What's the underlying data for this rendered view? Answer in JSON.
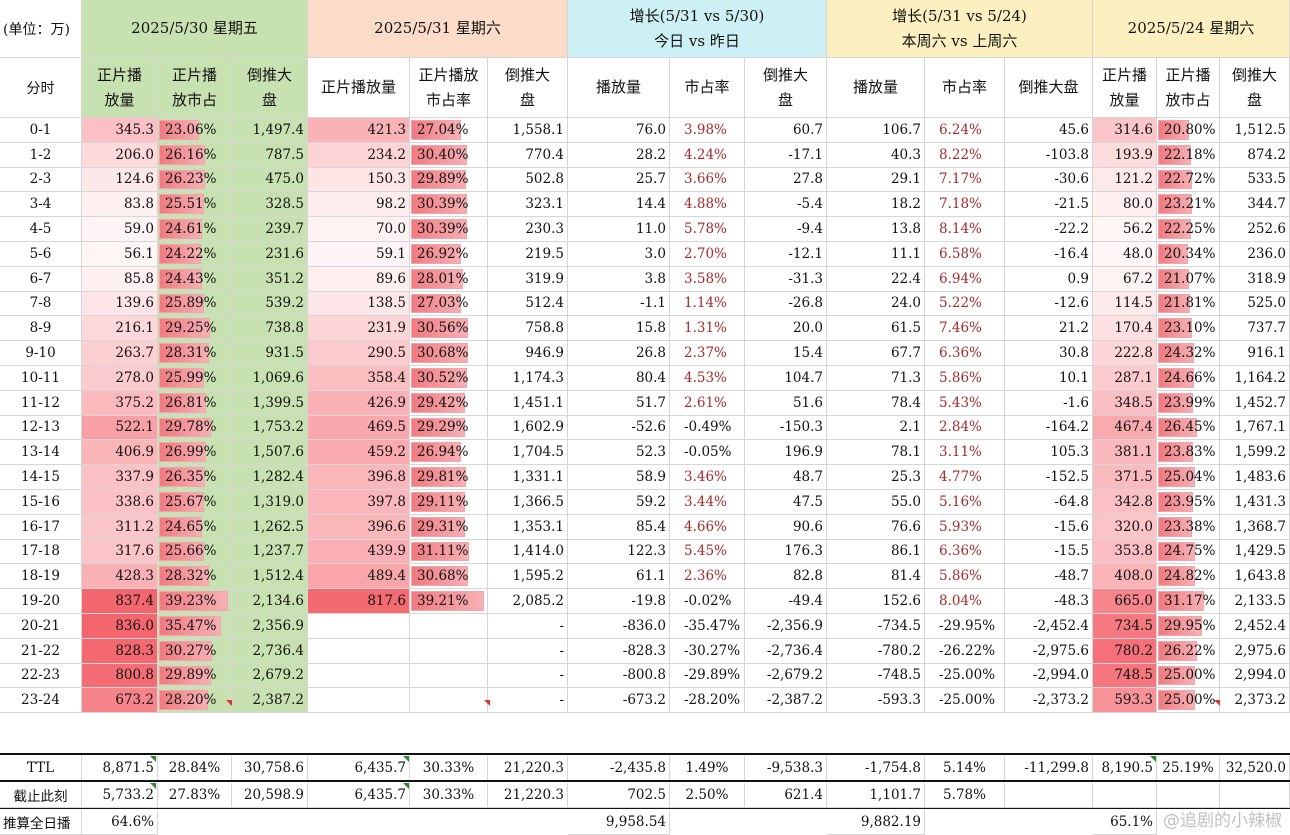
{
  "unit_label": "(单位：万)",
  "section_headers": {
    "d530": "2025/5/30 星期五",
    "d531": "2025/5/31 星期六",
    "g1": [
      "增长(5/31 vs 5/30)",
      "今日 vs 昨日"
    ],
    "g2": [
      "增长(5/31 vs 5/24)",
      "本周六 vs 上周六"
    ],
    "d524": "2025/5/24 星期六"
  },
  "column_headers": {
    "hour": "分时",
    "d530": [
      "正片播\n放量",
      "正片播\n放市占",
      "倒推大\n盘"
    ],
    "d531": [
      "正片播放量",
      "正片播放\n市占率",
      "倒推大\n盘"
    ],
    "g1": [
      "播放量",
      "市占率",
      "倒推大\n盘"
    ],
    "g2": [
      "播放量",
      "市占率",
      "倒推大盘"
    ],
    "d524": [
      "正片播\n放量",
      "正片播\n放市占",
      "倒推大\n盘"
    ]
  },
  "colors": {
    "d530_bg": "#c7e1b0",
    "d531_bg": "#fbdcc8",
    "g1_bg": "#ccf0f3",
    "g2_bg": "#fdf0c0",
    "d524_bg": "#fdf0c0",
    "heat_low": "#ffffff",
    "heat_high": "#f4666e",
    "bar": "#f07a80",
    "pct_text": "#a42b2b"
  },
  "rows": [
    {
      "hour": "0-1",
      "d530": [
        "345.3",
        "23.06%",
        "1,497.4"
      ],
      "d531": [
        "421.3",
        "27.04%",
        "1,558.1"
      ],
      "g1": [
        "76.0",
        "3.98%",
        "60.7"
      ],
      "g2": [
        "106.7",
        "6.24%",
        "45.6"
      ],
      "d524": [
        "314.6",
        "20.80%",
        "1,512.5"
      ]
    },
    {
      "hour": "1-2",
      "d530": [
        "206.0",
        "26.16%",
        "787.5"
      ],
      "d531": [
        "234.2",
        "30.40%",
        "770.4"
      ],
      "g1": [
        "28.2",
        "4.24%",
        "-17.1"
      ],
      "g2": [
        "40.3",
        "8.22%",
        "-103.8"
      ],
      "d524": [
        "193.9",
        "22.18%",
        "874.2"
      ]
    },
    {
      "hour": "2-3",
      "d530": [
        "124.6",
        "26.23%",
        "475.0"
      ],
      "d531": [
        "150.3",
        "29.89%",
        "502.8"
      ],
      "g1": [
        "25.7",
        "3.66%",
        "27.8"
      ],
      "g2": [
        "29.1",
        "7.17%",
        "-30.6"
      ],
      "d524": [
        "121.2",
        "22.72%",
        "533.5"
      ]
    },
    {
      "hour": "3-4",
      "d530": [
        "83.8",
        "25.51%",
        "328.5"
      ],
      "d531": [
        "98.2",
        "30.39%",
        "323.1"
      ],
      "g1": [
        "14.4",
        "4.88%",
        "-5.4"
      ],
      "g2": [
        "18.2",
        "7.18%",
        "-21.5"
      ],
      "d524": [
        "80.0",
        "23.21%",
        "344.7"
      ]
    },
    {
      "hour": "4-5",
      "d530": [
        "59.0",
        "24.61%",
        "239.7"
      ],
      "d531": [
        "70.0",
        "30.39%",
        "230.3"
      ],
      "g1": [
        "11.0",
        "5.78%",
        "-9.4"
      ],
      "g2": [
        "13.8",
        "8.14%",
        "-22.2"
      ],
      "d524": [
        "56.2",
        "22.25%",
        "252.6"
      ]
    },
    {
      "hour": "5-6",
      "d530": [
        "56.1",
        "24.22%",
        "231.6"
      ],
      "d531": [
        "59.1",
        "26.92%",
        "219.5"
      ],
      "g1": [
        "3.0",
        "2.70%",
        "-12.1"
      ],
      "g2": [
        "11.1",
        "6.58%",
        "-16.4"
      ],
      "d524": [
        "48.0",
        "20.34%",
        "236.0"
      ]
    },
    {
      "hour": "6-7",
      "d530": [
        "85.8",
        "24.43%",
        "351.2"
      ],
      "d531": [
        "89.6",
        "28.01%",
        "319.9"
      ],
      "g1": [
        "3.8",
        "3.58%",
        "-31.3"
      ],
      "g2": [
        "22.4",
        "6.94%",
        "0.9"
      ],
      "d524": [
        "67.2",
        "21.07%",
        "318.9"
      ]
    },
    {
      "hour": "7-8",
      "d530": [
        "139.6",
        "25.89%",
        "539.2"
      ],
      "d531": [
        "138.5",
        "27.03%",
        "512.4"
      ],
      "g1": [
        "-1.1",
        "1.14%",
        "-26.8"
      ],
      "g2": [
        "24.0",
        "5.22%",
        "-12.6"
      ],
      "d524": [
        "114.5",
        "21.81%",
        "525.0"
      ]
    },
    {
      "hour": "8-9",
      "d530": [
        "216.1",
        "29.25%",
        "738.8"
      ],
      "d531": [
        "231.9",
        "30.56%",
        "758.8"
      ],
      "g1": [
        "15.8",
        "1.31%",
        "20.0"
      ],
      "g2": [
        "61.5",
        "7.46%",
        "21.2"
      ],
      "d524": [
        "170.4",
        "23.10%",
        "737.7"
      ]
    },
    {
      "hour": "9-10",
      "d530": [
        "263.7",
        "28.31%",
        "931.5"
      ],
      "d531": [
        "290.5",
        "30.68%",
        "946.9"
      ],
      "g1": [
        "26.8",
        "2.37%",
        "15.4"
      ],
      "g2": [
        "67.7",
        "6.36%",
        "30.8"
      ],
      "d524": [
        "222.8",
        "24.32%",
        "916.1"
      ]
    },
    {
      "hour": "10-11",
      "d530": [
        "278.0",
        "25.99%",
        "1,069.6"
      ],
      "d531": [
        "358.4",
        "30.52%",
        "1,174.3"
      ],
      "g1": [
        "80.4",
        "4.53%",
        "104.7"
      ],
      "g2": [
        "71.3",
        "5.86%",
        "10.1"
      ],
      "d524": [
        "287.1",
        "24.66%",
        "1,164.2"
      ]
    },
    {
      "hour": "11-12",
      "d530": [
        "375.2",
        "26.81%",
        "1,399.5"
      ],
      "d531": [
        "426.9",
        "29.42%",
        "1,451.1"
      ],
      "g1": [
        "51.7",
        "2.61%",
        "51.6"
      ],
      "g2": [
        "78.4",
        "5.43%",
        "-1.6"
      ],
      "d524": [
        "348.5",
        "23.99%",
        "1,452.7"
      ]
    },
    {
      "hour": "12-13",
      "d530": [
        "522.1",
        "29.78%",
        "1,753.2"
      ],
      "d531": [
        "469.5",
        "29.29%",
        "1,602.9"
      ],
      "g1": [
        "-52.6",
        "-0.49%",
        "-150.3"
      ],
      "g2": [
        "2.1",
        "2.84%",
        "-164.2"
      ],
      "d524": [
        "467.4",
        "26.45%",
        "1,767.1"
      ]
    },
    {
      "hour": "13-14",
      "d530": [
        "406.9",
        "26.99%",
        "1,507.6"
      ],
      "d531": [
        "459.2",
        "26.94%",
        "1,704.5"
      ],
      "g1": [
        "52.3",
        "-0.05%",
        "196.9"
      ],
      "g2": [
        "78.1",
        "3.11%",
        "105.3"
      ],
      "d524": [
        "381.1",
        "23.83%",
        "1,599.2"
      ]
    },
    {
      "hour": "14-15",
      "d530": [
        "337.9",
        "26.35%",
        "1,282.4"
      ],
      "d531": [
        "396.8",
        "29.81%",
        "1,331.1"
      ],
      "g1": [
        "58.9",
        "3.46%",
        "48.7"
      ],
      "g2": [
        "25.3",
        "4.77%",
        "-152.5"
      ],
      "d524": [
        "371.5",
        "25.04%",
        "1,483.6"
      ]
    },
    {
      "hour": "15-16",
      "d530": [
        "338.6",
        "25.67%",
        "1,319.0"
      ],
      "d531": [
        "397.8",
        "29.11%",
        "1,366.5"
      ],
      "g1": [
        "59.2",
        "3.44%",
        "47.5"
      ],
      "g2": [
        "55.0",
        "5.16%",
        "-64.8"
      ],
      "d524": [
        "342.8",
        "23.95%",
        "1,431.3"
      ]
    },
    {
      "hour": "16-17",
      "d530": [
        "311.2",
        "24.65%",
        "1,262.5"
      ],
      "d531": [
        "396.6",
        "29.31%",
        "1,353.1"
      ],
      "g1": [
        "85.4",
        "4.66%",
        "90.6"
      ],
      "g2": [
        "76.6",
        "5.93%",
        "-15.6"
      ],
      "d524": [
        "320.0",
        "23.38%",
        "1,368.7"
      ]
    },
    {
      "hour": "17-18",
      "d530": [
        "317.6",
        "25.66%",
        "1,237.7"
      ],
      "d531": [
        "439.9",
        "31.11%",
        "1,414.0"
      ],
      "g1": [
        "122.3",
        "5.45%",
        "176.3"
      ],
      "g2": [
        "86.1",
        "6.36%",
        "-15.5"
      ],
      "d524": [
        "353.8",
        "24.75%",
        "1,429.5"
      ]
    },
    {
      "hour": "18-19",
      "d530": [
        "428.3",
        "28.32%",
        "1,512.4"
      ],
      "d531": [
        "489.4",
        "30.68%",
        "1,595.2"
      ],
      "g1": [
        "61.1",
        "2.36%",
        "82.8"
      ],
      "g2": [
        "81.4",
        "5.86%",
        "-48.7"
      ],
      "d524": [
        "408.0",
        "24.82%",
        "1,643.8"
      ]
    },
    {
      "hour": "19-20",
      "d530": [
        "837.4",
        "39.23%",
        "2,134.6"
      ],
      "d531": [
        "817.6",
        "39.21%",
        "2,085.2"
      ],
      "g1": [
        "-19.8",
        "-0.02%",
        "-49.4"
      ],
      "g2": [
        "152.6",
        "8.04%",
        "-48.3"
      ],
      "d524": [
        "665.0",
        "31.17%",
        "2,133.5"
      ]
    },
    {
      "hour": "20-21",
      "d530": [
        "836.0",
        "35.47%",
        "2,356.9"
      ],
      "d531": [
        "",
        "",
        "-"
      ],
      "g1": [
        "-836.0",
        "-35.47%",
        "-2,356.9"
      ],
      "g2": [
        "-734.5",
        "-29.95%",
        "-2,452.4"
      ],
      "d524": [
        "734.5",
        "29.95%",
        "2,452.4"
      ]
    },
    {
      "hour": "21-22",
      "d530": [
        "828.3",
        "30.27%",
        "2,736.4"
      ],
      "d531": [
        "",
        "",
        "-"
      ],
      "g1": [
        "-828.3",
        "-30.27%",
        "-2,736.4"
      ],
      "g2": [
        "-780.2",
        "-26.22%",
        "-2,975.6"
      ],
      "d524": [
        "780.2",
        "26.22%",
        "2,975.6"
      ]
    },
    {
      "hour": "22-23",
      "d530": [
        "800.8",
        "29.89%",
        "2,679.2"
      ],
      "d531": [
        "",
        "",
        "-"
      ],
      "g1": [
        "-800.8",
        "-29.89%",
        "-2,679.2"
      ],
      "g2": [
        "-748.5",
        "-25.00%",
        "-2,994.0"
      ],
      "d524": [
        "748.5",
        "25.00%",
        "2,994.0"
      ]
    },
    {
      "hour": "23-24",
      "d530": [
        "673.2",
        "28.20%",
        "2,387.2"
      ],
      "d531": [
        "",
        "",
        "-"
      ],
      "g1": [
        "-673.2",
        "-28.20%",
        "-2,387.2"
      ],
      "g2": [
        "-593.3",
        "-25.00%",
        "-2,373.2"
      ],
      "d524": [
        "593.3",
        "25.00%",
        "2,373.2"
      ]
    }
  ],
  "totals": [
    {
      "hour": "TTL",
      "d530": [
        "8,871.5",
        "28.84%",
        "30,758.6"
      ],
      "d531": [
        "6,435.7",
        "30.33%",
        "21,220.3"
      ],
      "g1": [
        "-2,435.8",
        "1.49%",
        "-9,538.3"
      ],
      "g2": [
        "-1,754.8",
        "5.14%",
        "-11,299.8"
      ],
      "d524": [
        "8,190.5",
        "25.19%",
        "32,520.0"
      ]
    },
    {
      "hour": "截止此刻",
      "d530": [
        "5,733.2",
        "27.83%",
        "20,598.9"
      ],
      "d531": [
        "6,435.7",
        "30.33%",
        "21,220.3"
      ],
      "g1": [
        "702.5",
        "2.50%",
        "621.4"
      ],
      "g2": [
        "1,101.7",
        "5.78%",
        ""
      ],
      "d524": [
        "",
        "",
        ""
      ]
    }
  ],
  "estimate_row": {
    "label": "推算全日播",
    "d530_pct": "64.6%",
    "g1_val": "9,958.54",
    "g2_val": "9,882.19",
    "d524_pct": "65.1%"
  },
  "watermark": "@追剧的小辣椒"
}
